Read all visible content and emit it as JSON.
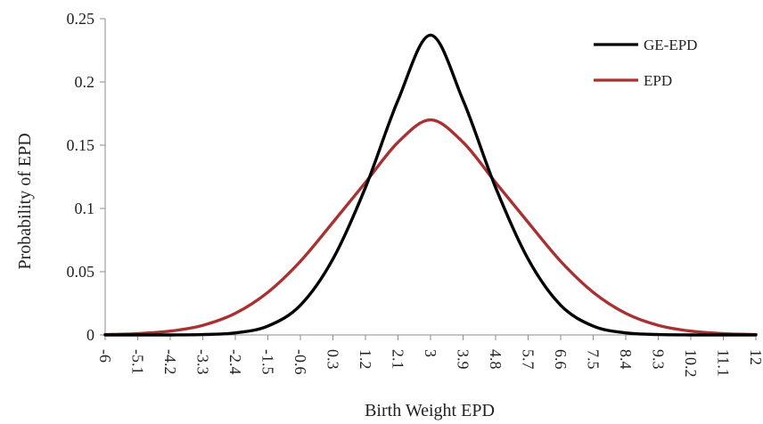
{
  "chart_data": {
    "type": "line",
    "title": "",
    "xlabel": "Birth Weight EPD",
    "ylabel": "Probability of EPD",
    "xlim": [
      -6,
      12
    ],
    "ylim": [
      0,
      0.25
    ],
    "x_ticks": [
      "-6",
      "-5.1",
      "-4.2",
      "-3.3",
      "-2.4",
      "-1.5",
      "-0.6",
      "0.3",
      "1.2",
      "2.1",
      "3",
      "3.9",
      "4.8",
      "5.7",
      "6.6",
      "7.5",
      "8.4",
      "9.3",
      "10.2",
      "11.1",
      "12"
    ],
    "y_ticks": [
      "0",
      "0.05",
      "0.1",
      "0.15",
      "0.2",
      "0.25"
    ],
    "grid": false,
    "legend_position": "top-right",
    "x": [
      -6,
      -5.1,
      -4.2,
      -3.3,
      -2.4,
      -1.5,
      -0.6,
      0.3,
      1.2,
      2.1,
      3,
      3.9,
      4.8,
      5.7,
      6.6,
      7.5,
      8.4,
      9.3,
      10.2,
      11.1,
      12
    ],
    "series": [
      {
        "name": "GE-EPD",
        "color": "#000000",
        "values": [
          0.0,
          0.0,
          0.0,
          0.0003,
          0.0016,
          0.007,
          0.0235,
          0.06,
          0.1166,
          0.1855,
          0.237,
          0.1855,
          0.1166,
          0.06,
          0.0235,
          0.007,
          0.0016,
          0.0003,
          0.0,
          0.0,
          0.0
        ]
      },
      {
        "name": "EPD",
        "color": "#a83232",
        "values": [
          0.0003,
          0.001,
          0.003,
          0.0076,
          0.0171,
          0.0337,
          0.0582,
          0.089,
          0.1205,
          0.1523,
          0.17,
          0.1523,
          0.1205,
          0.089,
          0.0582,
          0.0337,
          0.0171,
          0.0076,
          0.003,
          0.001,
          0.0003
        ]
      }
    ]
  }
}
